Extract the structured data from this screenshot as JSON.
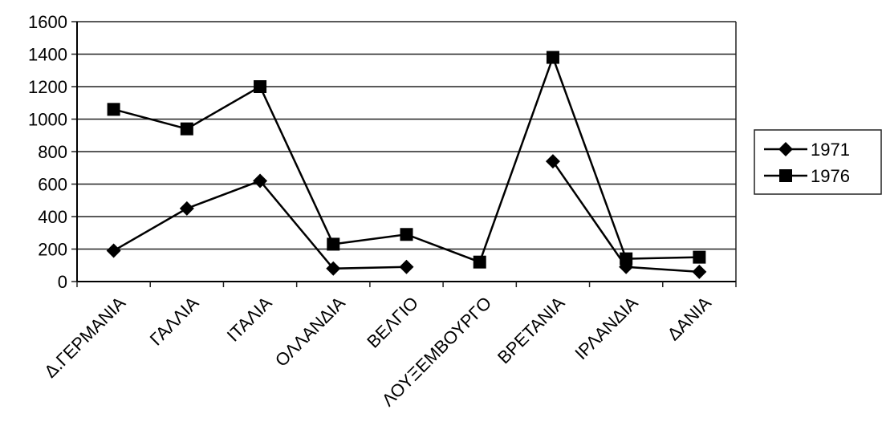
{
  "chart_data": {
    "type": "line",
    "title": "",
    "xlabel": "",
    "ylabel": "",
    "ylim": [
      0,
      1600
    ],
    "yticks": [
      0,
      200,
      400,
      600,
      800,
      1000,
      1200,
      1400,
      1600
    ],
    "grid": "horizontal",
    "legend": "right",
    "categories": [
      "Δ.ΓΕΡΜΑΝΙΑ",
      "ΓΑΛΛΙΑ",
      "ΙΤΑΛΙΑ",
      "ΟΛΛΑΝΔΙΑ",
      "ΒΕΛΓΙΟ",
      "ΛΟΥΞΕΜΒΟΥΡΓΟ",
      "ΒΡΕΤΑΝΙΑ",
      "ΙΡΛΑΝΔΙΑ",
      "ΔΑΝΙΑ"
    ],
    "series": [
      {
        "name": "1971",
        "marker": "diamond",
        "color": "#000000",
        "values": [
          190,
          450,
          620,
          80,
          90,
          null,
          740,
          90,
          60
        ]
      },
      {
        "name": "1976",
        "marker": "square",
        "color": "#000000",
        "values": [
          1060,
          940,
          1200,
          230,
          290,
          120,
          1380,
          140,
          150
        ]
      }
    ]
  }
}
